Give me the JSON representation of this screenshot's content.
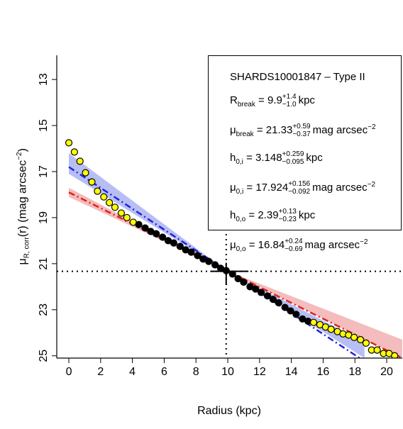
{
  "chart_data": {
    "type": "scatter",
    "xlabel": "Radius (kpc)",
    "ylabel": {
      "symbol": "μ",
      "sub": "R, corr",
      "mid": "(r) (mag arcsec",
      "sup": "−2",
      "end": ")"
    },
    "xlim": [
      -0.76,
      20.98
    ],
    "ylim": [
      25.1,
      11.95
    ],
    "xticks": [
      0,
      2,
      4,
      6,
      8,
      10,
      12,
      14,
      16,
      18,
      20
    ],
    "yticks": [
      13,
      15,
      17,
      19,
      21,
      23,
      25
    ],
    "bands": [
      {
        "color": "#9fa8f0",
        "x": [
          0,
          9.9,
          18.6
        ],
        "lower": [
          16.2,
          21.3,
          24.4
        ],
        "upper": [
          17.1,
          21.3,
          25.1
        ]
      },
      {
        "color": "#f0a6a6",
        "x": [
          0,
          9.9,
          20.98
        ],
        "lower": [
          17.7,
          21.3,
          24.3
        ],
        "upper": [
          18.1,
          21.3,
          25.1
        ]
      }
    ],
    "fits": [
      {
        "color": "#2020e0",
        "x": [
          0,
          18.3
        ],
        "values": [
          16.8,
          25.1
        ]
      },
      {
        "color": "#e02020",
        "x": [
          0,
          20.98
        ],
        "values": [
          17.9,
          25.1
        ]
      }
    ],
    "series": [
      {
        "color": "#ffff00",
        "x": [
          0,
          0.35,
          0.7,
          1.05,
          1.45,
          1.8,
          2.2,
          2.55,
          2.9,
          3.3,
          3.65,
          4.05
        ],
        "values": [
          15.75,
          16.15,
          16.55,
          17.05,
          17.45,
          17.85,
          18.1,
          18.35,
          18.55,
          18.8,
          19.0,
          19.2
        ]
      },
      {
        "color": "#000000",
        "x": [
          4.4,
          4.8,
          5.15,
          5.5,
          5.9,
          6.25,
          6.6,
          7.0,
          7.35,
          7.7,
          8.1,
          8.45,
          8.8,
          9.2,
          9.55,
          9.9,
          10.3,
          10.65,
          11.0,
          11.4,
          11.75,
          12.1,
          12.5,
          12.85,
          13.2,
          13.6,
          13.95,
          14.3,
          14.7,
          15.05
        ],
        "values": [
          19.3,
          19.45,
          19.6,
          19.7,
          19.85,
          20.0,
          20.1,
          20.25,
          20.4,
          20.5,
          20.65,
          20.8,
          20.9,
          21.05,
          21.2,
          21.3,
          21.45,
          21.65,
          21.8,
          22.0,
          22.1,
          22.25,
          22.4,
          22.55,
          22.7,
          22.9,
          23.05,
          23.2,
          23.4,
          23.5
        ]
      },
      {
        "color": "#ffff00",
        "x": [
          15.4,
          15.8,
          16.15,
          16.5,
          16.9,
          17.25,
          17.6,
          17.95,
          18.35,
          18.7,
          19.05,
          19.4,
          19.8,
          20.15,
          20.5
        ],
        "values": [
          23.55,
          23.65,
          23.75,
          23.85,
          23.95,
          24.05,
          24.1,
          24.2,
          24.3,
          24.45,
          24.75,
          24.75,
          24.9,
          24.9,
          25.0
        ]
      }
    ],
    "break_marker": {
      "x": 9.9,
      "y": 21.33,
      "xerr": [
        1.0,
        1.4
      ],
      "yerr": [
        0.37,
        0.59
      ]
    },
    "legend": {
      "title": "SHARDS10001847  –  Type II",
      "rows": [
        {
          "symbol": "R",
          "sub": "break",
          "eq": " = 9.9",
          "plus": "+1.4",
          "minus": "−1.0",
          "unit": "kpc"
        },
        {
          "symbol": "μ",
          "sub": "break",
          "eq": " = 21.33",
          "plus": "+0.59",
          "minus": "−0.37",
          "unit": "mag arcsec",
          "unit_sup": "−2"
        },
        {
          "symbol": "h",
          "sub": "0,i",
          "eq": " = 3.148",
          "plus": "+0.259",
          "minus": "−0.095",
          "unit": "kpc"
        },
        {
          "symbol": "μ",
          "sub": "0,i",
          "eq": " = 17.924",
          "plus": "+0.156",
          "minus": "−0.092",
          "unit": "mag arcsec",
          "unit_sup": "−2"
        },
        {
          "symbol": "h",
          "sub": "0,o",
          "eq": " = 2.39",
          "plus": "+0.13",
          "minus": "−0.23",
          "unit": "kpc"
        },
        {
          "symbol": "μ",
          "sub": "0,o",
          "eq": " = 16.84",
          "plus": "+0.24",
          "minus": "−0.69",
          "unit": "mag arcsec",
          "unit_sup": "−2"
        }
      ]
    }
  }
}
